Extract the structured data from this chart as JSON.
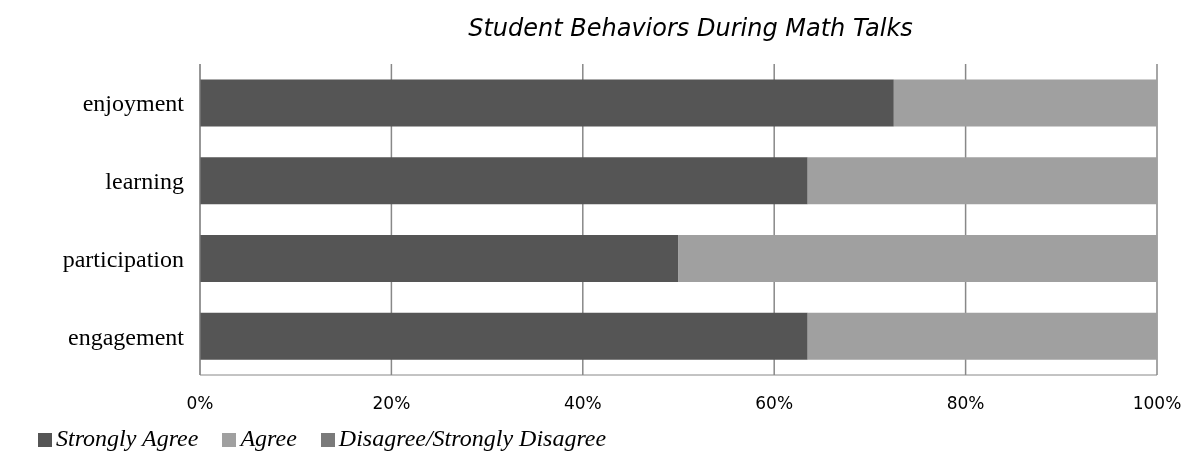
{
  "chart_data": {
    "type": "bar",
    "orientation": "horizontal",
    "stacked": true,
    "title": "Student Behaviors During Math Talks",
    "categories": [
      "enjoyment",
      "learning",
      "participation",
      "engagement"
    ],
    "series": [
      {
        "name": "Strongly Agree",
        "color": "#555555",
        "values": [
          72.5,
          63.5,
          50,
          63.5
        ]
      },
      {
        "name": "Agree",
        "color": "#a0a0a0",
        "values": [
          27.5,
          36.5,
          50,
          36.5
        ]
      },
      {
        "name": "Disagree/Strongly Disagree",
        "color": "#7a7a7a",
        "values": [
          0,
          0,
          0,
          0
        ]
      }
    ],
    "xlim": [
      0,
      100
    ],
    "xticks": [
      {
        "value": 0,
        "label": "0%"
      },
      {
        "value": 20,
        "label": "20%"
      },
      {
        "value": 40,
        "label": "40%"
      },
      {
        "value": 60,
        "label": "60%"
      },
      {
        "value": 80,
        "label": "80%"
      },
      {
        "value": 100,
        "label": "100%"
      }
    ],
    "grid": "x",
    "legend": "bottom left"
  }
}
